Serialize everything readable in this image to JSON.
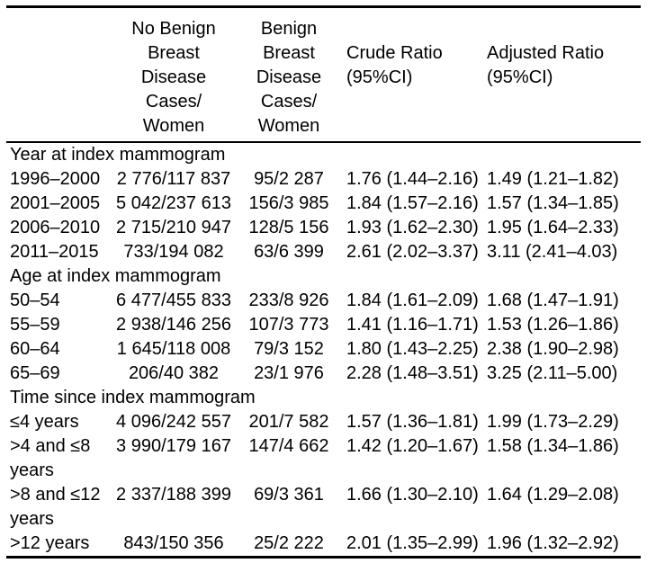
{
  "table": {
    "headers": [
      {
        "key": "label",
        "label": ""
      },
      {
        "key": "no_benign",
        "label": "No Benign\nBreast\nDisease\nCases/\nWomen"
      },
      {
        "key": "benign",
        "label": "Benign\nBreast\nDisease\nCases/\nWomen"
      },
      {
        "key": "crude",
        "label": "Crude Ratio\n(95%CI)"
      },
      {
        "key": "adjusted",
        "label": "Adjusted Ratio\n(95%CI)"
      }
    ],
    "sections": [
      {
        "title": "Year at index mammogram",
        "rows": [
          {
            "label": "1996–2000",
            "no_benign": "2 776/117 837",
            "benign": "95/2 287",
            "crude": "1.76 (1.44–2.16)",
            "adjusted": "1.49 (1.21–1.82)"
          },
          {
            "label": "2001–2005",
            "no_benign": "5 042/237 613",
            "benign": "156/3 985",
            "crude": "1.84 (1.57–2.16)",
            "adjusted": "1.57 (1.34–1.85)"
          },
          {
            "label": "2006–2010",
            "no_benign": "2 715/210 947",
            "benign": "128/5 156",
            "crude": "1.93 (1.62–2.30)",
            "adjusted": "1.95 (1.64–2.33)"
          },
          {
            "label": "2011–2015",
            "no_benign": "733/194 082",
            "benign": "63/6 399",
            "crude": "2.61 (2.02–3.37)",
            "adjusted": "3.11 (2.41–4.03)"
          }
        ]
      },
      {
        "title": "Age at index mammogram",
        "rows": [
          {
            "label": "50–54",
            "no_benign": "6 477/455 833",
            "benign": "233/8 926",
            "crude": "1.84 (1.61–2.09)",
            "adjusted": "1.68 (1.47–1.91)"
          },
          {
            "label": "55–59",
            "no_benign": "2 938/146 256",
            "benign": "107/3 773",
            "crude": "1.41 (1.16–1.71)",
            "adjusted": "1.53 (1.26–1.86)"
          },
          {
            "label": "60–64",
            "no_benign": "1 645/118 008",
            "benign": "79/3 152",
            "crude": "1.80 (1.43–2.25)",
            "adjusted": "2.38 (1.90–2.98)"
          },
          {
            "label": "65–69",
            "no_benign": "206/40 382",
            "benign": "23/1 976",
            "crude": "2.28 (1.48–3.51)",
            "adjusted": "3.25 (2.11–5.00)"
          }
        ]
      },
      {
        "title": "Time since index mammogram",
        "rows": [
          {
            "label": "≤4 years",
            "no_benign": "4 096/242 557",
            "benign": "201/7 582",
            "crude": "1.57 (1.36–1.81)",
            "adjusted": "1.99 (1.73–2.29)"
          },
          {
            "label": ">4 and ≤8 years",
            "no_benign": "3 990/179 167",
            "benign": "147/4 662",
            "crude": "1.42 (1.20–1.67)",
            "adjusted": "1.58 (1.34–1.86)"
          },
          {
            "label": ">8 and ≤12 years",
            "no_benign": "2 337/188 399",
            "benign": "69/3 361",
            "crude": "1.66 (1.30–2.10)",
            "adjusted": "1.64 (1.29–2.08)"
          },
          {
            "label": ">12 years",
            "no_benign": "843/150 356",
            "benign": "25/2 222",
            "crude": "2.01 (1.35–2.99)",
            "adjusted": "1.96 (1.32–2.92)"
          }
        ]
      }
    ]
  }
}
